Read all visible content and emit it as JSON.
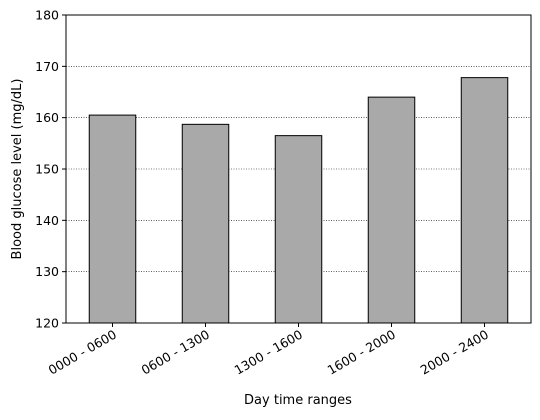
{
  "chart_data": {
    "type": "bar",
    "title": "",
    "xlabel": "Day time ranges",
    "ylabel": "Blood glucose level (mg/dL)",
    "categories": [
      "0000 - 0600",
      "0600 - 1300",
      "1300 - 1600",
      "1600 - 2000",
      "2000 - 2400"
    ],
    "values": [
      160.5,
      158.7,
      156.5,
      164.0,
      167.8
    ],
    "ylim": [
      120,
      180
    ],
    "yticks": [
      120,
      130,
      140,
      150,
      160,
      170,
      180
    ],
    "grid": "y-dotted",
    "bar_color": "#a9a9a9",
    "bar_edge_color": "#000000",
    "legend": "none"
  }
}
